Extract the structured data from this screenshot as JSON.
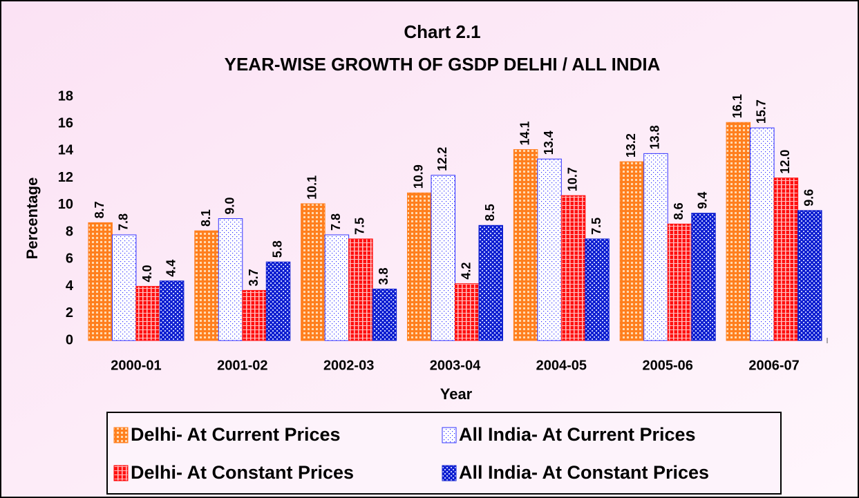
{
  "chart_data": {
    "type": "bar",
    "title": [
      "Chart 2.1",
      "YEAR-WISE GROWTH OF GSDP DELHI / ALL INDIA"
    ],
    "xlabel": "Year",
    "ylabel": "Percentage",
    "categories": [
      "2000-01",
      "2001-02",
      "2002-03",
      "2003-04",
      "2004-05",
      "2005-06",
      "2006-07"
    ],
    "series": [
      {
        "name": "Delhi- At Current Prices",
        "color": "#ff7f1e",
        "values": [
          8.7,
          8.1,
          10.1,
          10.9,
          14.1,
          13.2,
          16.1
        ],
        "value_labels": [
          "8.7",
          "8.1",
          "10.1",
          "10.9",
          "14.1",
          "13.2",
          "16.1"
        ]
      },
      {
        "name": "All India- At Current Prices",
        "color": "#3030ff",
        "values": [
          7.8,
          9.0,
          7.8,
          12.2,
          13.4,
          13.8,
          15.7
        ],
        "value_labels": [
          "7.8",
          "9.0",
          "7.8",
          "12.2",
          "13.4",
          "13.8",
          "15.7"
        ]
      },
      {
        "name": "Delhi- At Constant Prices",
        "color": "#ff1010",
        "values": [
          4.0,
          3.7,
          7.5,
          4.2,
          10.7,
          8.6,
          12.0
        ],
        "value_labels": [
          "4.0",
          "3.7",
          "7.5",
          "4.2",
          "10.7",
          "8.6",
          "12.0"
        ]
      },
      {
        "name": "All India- At Constant Prices",
        "color": "#1020d0",
        "values": [
          4.4,
          5.8,
          3.8,
          8.5,
          7.5,
          9.4,
          9.6
        ],
        "value_labels": [
          "4.4",
          "5.8",
          "3.8",
          "8.5",
          "7.5",
          "9.4",
          "9.6"
        ]
      }
    ],
    "ylim": [
      0,
      18
    ],
    "yticks": [
      0,
      2,
      4,
      6,
      8,
      10,
      12,
      14,
      16,
      18
    ],
    "grid": false
  }
}
